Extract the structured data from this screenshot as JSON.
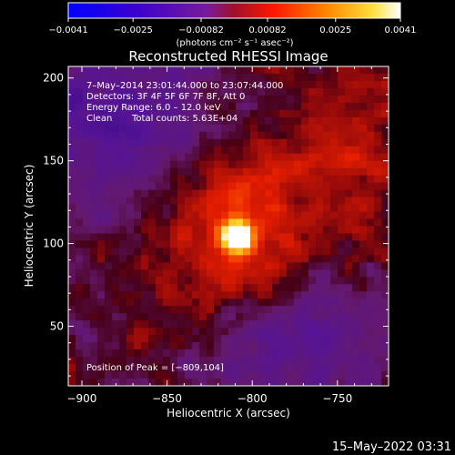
{
  "chart_data": {
    "type": "heatmap",
    "title": "Reconstructed RHESSI Image",
    "xlabel": "Heliocentric X (arcsec)",
    "ylabel": "Heliocentric Y (arcsec)",
    "xlim": [
      -908,
      -720
    ],
    "ylim": [
      14,
      207
    ],
    "xticks": [
      -900,
      -850,
      -800,
      -750
    ],
    "yticks": [
      50,
      100,
      150,
      200
    ],
    "xtick_labels": [
      "−900",
      "−850",
      "−800",
      "−750"
    ],
    "ytick_labels": [
      "50",
      "100",
      "150",
      "200"
    ],
    "colorbar": {
      "min": -0.0041,
      "max": 0.0041,
      "ticks": [
        -0.0041,
        -0.0025,
        -0.00082,
        0.00082,
        0.0025,
        0.0041
      ],
      "tick_labels": [
        "−0.0041",
        "−0.0025",
        "−0.00082",
        "0.00082",
        "0.0025",
        "0.0041"
      ],
      "unit_label": "(photons cm⁻² s⁻¹ asec⁻²)",
      "colormap": "blue-purple-red-yellow-white"
    },
    "annotations": {
      "time_range": "7–May–2014 23:01:44.000 to 23:07:44.000",
      "detectors": "Detectors: 3F 4F 5F 6F 7F 8F, Att 0",
      "energy_range": "Energy Range: 6.0 – 12.0 keV",
      "method": "Clean",
      "total_counts": "Total counts: 5.63E+04",
      "peak_position": "Position of Peak = [−809,104]"
    },
    "peak": {
      "x": -809,
      "y": 104
    },
    "grid": false
  },
  "footer": {
    "timestamp": "15–May–2022 03:31"
  }
}
